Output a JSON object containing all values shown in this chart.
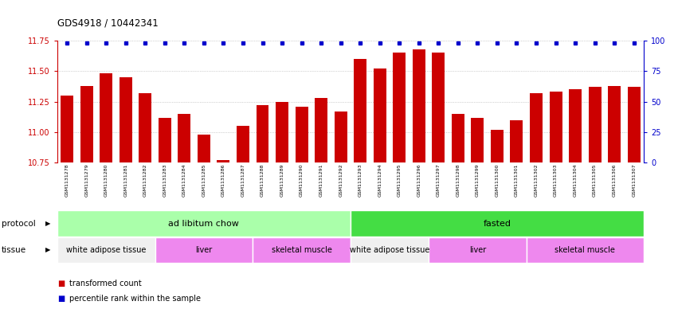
{
  "title": "GDS4918 / 10442341",
  "samples": [
    "GSM1131278",
    "GSM1131279",
    "GSM1131280",
    "GSM1131281",
    "GSM1131282",
    "GSM1131283",
    "GSM1131284",
    "GSM1131285",
    "GSM1131286",
    "GSM1131287",
    "GSM1131288",
    "GSM1131289",
    "GSM1131290",
    "GSM1131291",
    "GSM1131292",
    "GSM1131293",
    "GSM1131294",
    "GSM1131295",
    "GSM1131296",
    "GSM1131297",
    "GSM1131298",
    "GSM1131299",
    "GSM1131300",
    "GSM1131301",
    "GSM1131302",
    "GSM1131303",
    "GSM1131304",
    "GSM1131305",
    "GSM1131306",
    "GSM1131307"
  ],
  "bar_values": [
    11.3,
    11.38,
    11.48,
    11.45,
    11.32,
    11.12,
    11.15,
    10.98,
    10.77,
    11.05,
    11.22,
    11.25,
    11.21,
    11.28,
    11.17,
    11.6,
    11.52,
    11.65,
    11.68,
    11.65,
    11.15,
    11.12,
    11.02,
    11.1,
    11.32,
    11.33,
    11.35,
    11.37,
    11.38,
    11.37
  ],
  "bar_color": "#cc0000",
  "percentile_color": "#0000cc",
  "ylim_left": [
    10.75,
    11.75
  ],
  "ylim_right": [
    0,
    100
  ],
  "yticks_left": [
    10.75,
    11.0,
    11.25,
    11.5,
    11.75
  ],
  "yticks_right": [
    0,
    25,
    50,
    75,
    100
  ],
  "protocol_groups": [
    {
      "label": "ad libitum chow",
      "start": 0,
      "end": 14,
      "color": "#aaffaa"
    },
    {
      "label": "fasted",
      "start": 15,
      "end": 29,
      "color": "#44dd44"
    }
  ],
  "tissue_groups": [
    {
      "label": "white adipose tissue",
      "start": 0,
      "end": 4,
      "color": "#f0f0f0"
    },
    {
      "label": "liver",
      "start": 5,
      "end": 9,
      "color": "#ee88ee"
    },
    {
      "label": "skeletal muscle",
      "start": 10,
      "end": 14,
      "color": "#ee88ee"
    },
    {
      "label": "white adipose tissue",
      "start": 15,
      "end": 18,
      "color": "#f0f0f0"
    },
    {
      "label": "liver",
      "start": 19,
      "end": 23,
      "color": "#ee88ee"
    },
    {
      "label": "skeletal muscle",
      "start": 24,
      "end": 29,
      "color": "#ee88ee"
    }
  ],
  "tissue_colors_map": {
    "white adipose tissue": "#f0f0f0",
    "liver": "#ee88ee",
    "skeletal muscle": "#ee88ee"
  },
  "protocol_label": "protocol",
  "tissue_label": "tissue",
  "legend_transformed": "transformed count",
  "legend_percentile": "percentile rank within the sample",
  "grid_color": "#aaaaaa",
  "left_axis_color": "#cc0000",
  "right_axis_color": "#0000cc",
  "xtick_bg": "#d8d8d8",
  "plot_bg": "#ffffff"
}
